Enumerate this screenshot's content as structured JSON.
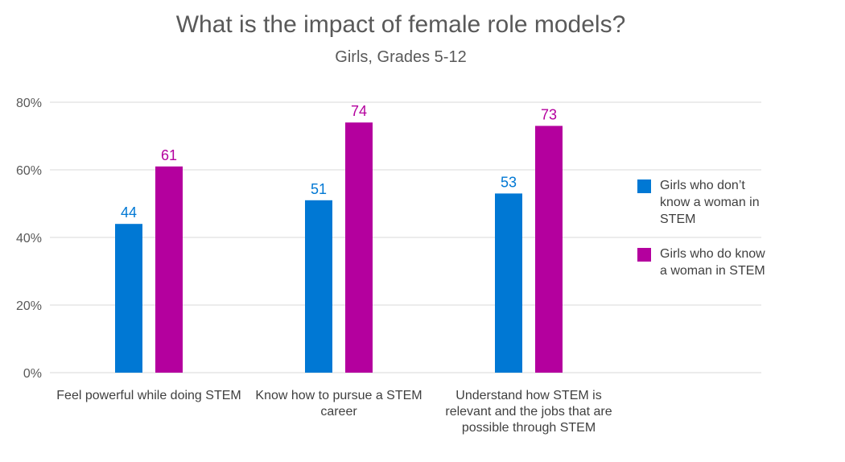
{
  "chart_data": {
    "type": "bar",
    "title": "What is the impact of female role models?",
    "subtitle": "Girls, Grades 5-12",
    "categories": [
      "Feel powerful while doing STEM",
      "Know how to pursue a STEM career",
      "Understand how STEM is relevant and the jobs that are possible through STEM"
    ],
    "series": [
      {
        "name": "Girls who don’t know a woman in STEM",
        "values": [
          44,
          51,
          53
        ],
        "color": "#0078D4"
      },
      {
        "name": "Girls who do know a woman in STEM",
        "values": [
          61,
          74,
          73
        ],
        "color": "#B4009E"
      }
    ],
    "ylim": [
      0,
      80
    ],
    "yticks": [
      0,
      20,
      40,
      60,
      80
    ],
    "ytick_format": "%",
    "grid": true,
    "legend_position": "right"
  }
}
